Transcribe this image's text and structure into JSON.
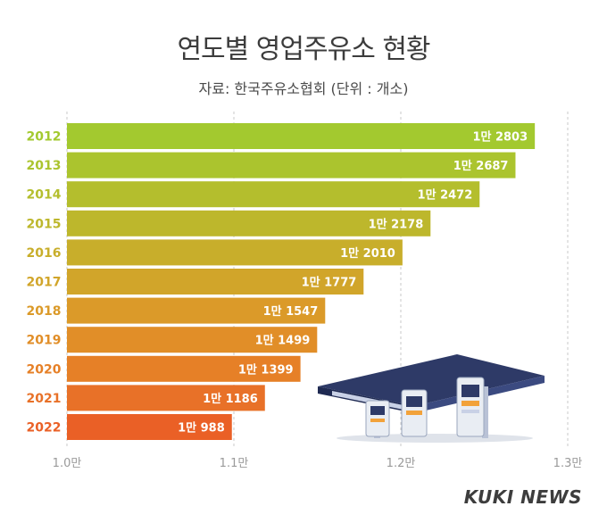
{
  "title": "연도별 영업주유소 현황",
  "subtitle": "자료: 한국주유소협회  (단위 : 개소)",
  "brand": "KUKI NEWS",
  "chart_data": {
    "type": "bar",
    "orientation": "horizontal",
    "categories": [
      "2012",
      "2013",
      "2014",
      "2015",
      "2016",
      "2017",
      "2018",
      "2019",
      "2020",
      "2021",
      "2022"
    ],
    "values": [
      12803,
      12687,
      12472,
      12178,
      12010,
      11777,
      11547,
      11499,
      11399,
      11186,
      10988
    ],
    "value_labels": [
      "1만 2803",
      "1만 2687",
      "1만 2472",
      "1만 2178",
      "1만 2010",
      "1만 1777",
      "1만 1547",
      "1만 1499",
      "1만 1399",
      "1만 1186",
      "1만 988"
    ],
    "xlim": [
      10000,
      13000
    ],
    "xticks": [
      10000,
      11000,
      12000,
      13000
    ],
    "xtick_labels": [
      "1.0만",
      "1.1만",
      "1.2만",
      "1.3만"
    ],
    "grid": true,
    "colors": [
      "#a3c92f",
      "#abc42e",
      "#b4be2d",
      "#bdb72c",
      "#c8ae2b",
      "#d1a52a",
      "#db9a29",
      "#e18e28",
      "#e68027",
      "#e87128",
      "#ea6026"
    ],
    "label_colors": [
      "#a3c92f",
      "#abc42e",
      "#b4be2d",
      "#bdb72c",
      "#c8ae2b",
      "#d1a52a",
      "#db9a29",
      "#e18e28",
      "#e68027",
      "#e87128",
      "#ea6026"
    ]
  }
}
